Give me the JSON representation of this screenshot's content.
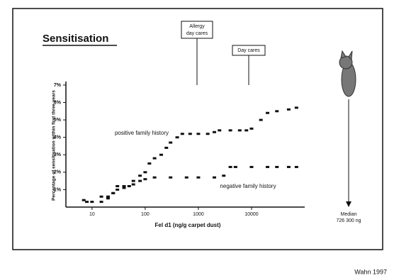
{
  "slide_title": "Sensitisation",
  "footer": "Wahn 1997",
  "annotations": {
    "allergy_box": [
      "Allergy",
      "day cares"
    ],
    "daycare_box": "Day cares",
    "median": [
      "Median",
      "726 300 ng"
    ]
  },
  "chart_data": {
    "type": "scatter",
    "xlabel": "Fel d1 (ng/g carpet dust)",
    "ylabel": "Percentage of sensitisation within first three years",
    "xscale": "log",
    "xlim": [
      4,
      100000
    ],
    "ylim": [
      0,
      7.2
    ],
    "xticks": [
      10,
      100,
      1000,
      10000
    ],
    "yticks": [
      {
        "value": 1,
        "label": "1%"
      },
      {
        "value": 2,
        "label": "2%"
      },
      {
        "value": 3,
        "label": "3%"
      },
      {
        "value": 4,
        "label": "4%"
      },
      {
        "value": 5,
        "label": "5%"
      },
      {
        "value": 6,
        "label": "6%"
      },
      {
        "value": 7,
        "label": "7%"
      }
    ],
    "series": [
      {
        "name": "positive family history",
        "color": "#111111",
        "x": [
          8,
          15,
          20,
          25,
          30,
          40,
          50,
          60,
          80,
          100,
          120,
          150,
          200,
          250,
          300,
          400,
          500,
          700,
          1000,
          1500,
          2000,
          2500,
          4000,
          6000,
          8000,
          10000,
          15000,
          20000,
          30000,
          50000,
          70000
        ],
        "values": [
          0.3,
          0.3,
          0.5,
          0.8,
          1.2,
          1.2,
          1.2,
          1.5,
          1.8,
          2.0,
          2.5,
          2.8,
          3.0,
          3.4,
          3.7,
          4.0,
          4.2,
          4.2,
          4.2,
          4.2,
          4.3,
          4.4,
          4.4,
          4.4,
          4.4,
          4.5,
          5.0,
          5.4,
          5.5,
          5.6,
          5.7
        ]
      },
      {
        "name": "negative family history",
        "color": "#111111",
        "x": [
          7,
          10,
          15,
          20,
          25,
          30,
          40,
          60,
          80,
          100,
          150,
          300,
          600,
          1000,
          2000,
          3000,
          4000,
          5000,
          10000,
          20000,
          30000,
          50000,
          70000
        ],
        "values": [
          0.4,
          0.3,
          0.6,
          0.6,
          0.8,
          1.0,
          1.1,
          1.3,
          1.5,
          1.6,
          1.7,
          1.7,
          1.7,
          1.7,
          1.7,
          1.8,
          2.3,
          2.3,
          2.3,
          2.3,
          2.3,
          2.3,
          2.3
        ]
      }
    ]
  }
}
